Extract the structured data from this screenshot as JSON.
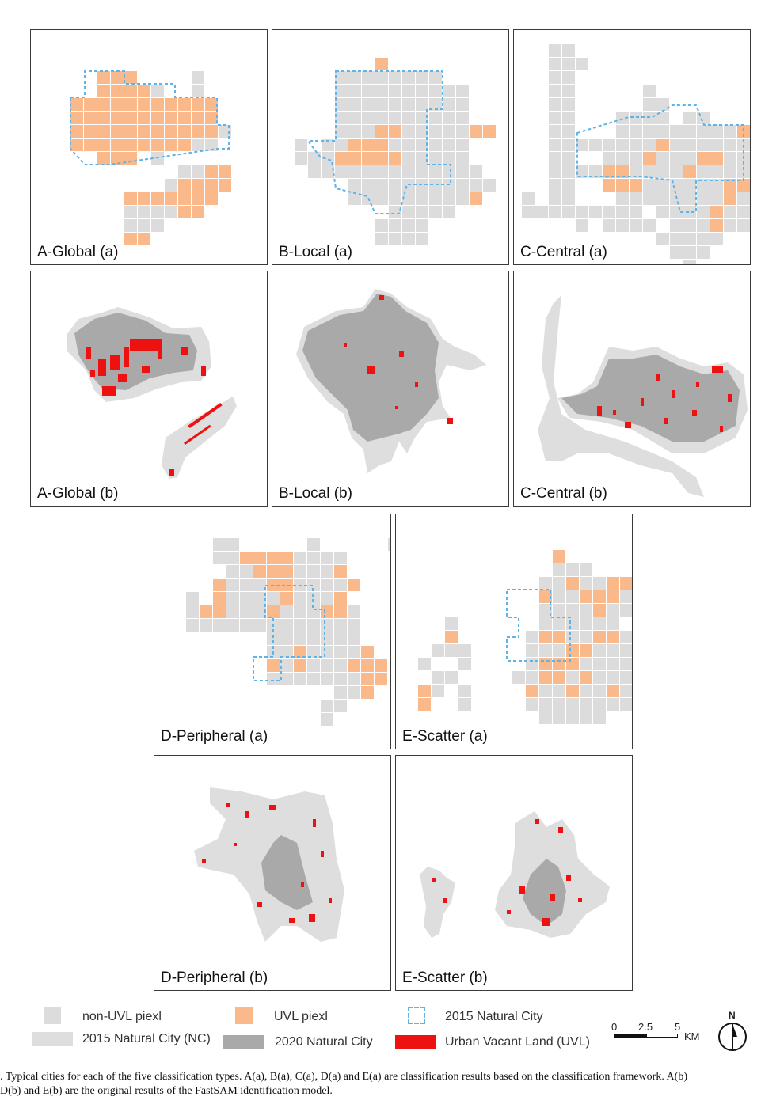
{
  "page_header": {
    "left": "…",
    "right": "…"
  },
  "panels": {
    "a_global_a": "A-Global (a)",
    "b_local_a": "B-Local (a)",
    "c_central_a": "C-Central (a)",
    "a_global_b": "A-Global (b)",
    "b_local_b": "B-Local (b)",
    "c_central_b": "C-Central (b)",
    "d_peripheral_a": "D-Peripheral (a)",
    "e_scatter_a": "E-Scatter (a)",
    "d_peripheral_b": "D-Peripheral (b)",
    "e_scatter_b": "E-Scatter (b)"
  },
  "legend": {
    "non_uvl": "non-UVL piexl",
    "uvl": "UVL piexl",
    "nc2015_outline": "2015 Natural City",
    "nc2015": "2015 Natural City (NC)",
    "nc2020": "2020 Natural City",
    "uvl_land": "Urban Vacant Land (UVL)"
  },
  "scale_bar": {
    "t0": "0",
    "t1": "2.5",
    "t2": "5",
    "unit": "KM",
    "north": "N"
  },
  "colors": {
    "non_uvl": "#dcdcdc",
    "uvl": "#f9b98b",
    "outline": "#5fb3e8",
    "nc2015": "#dedede",
    "nc2020": "#a9a9a9",
    "uvl_land": "#ee1111"
  },
  "caption": {
    "line1": ". Typical cities for each of the five classification types. A(a), B(a), C(a), D(a) and E(a) are classification results based on the classification framework. A(b)",
    "line2": "D(b) and E(b) are the original results of the FastSAM identification model."
  }
}
